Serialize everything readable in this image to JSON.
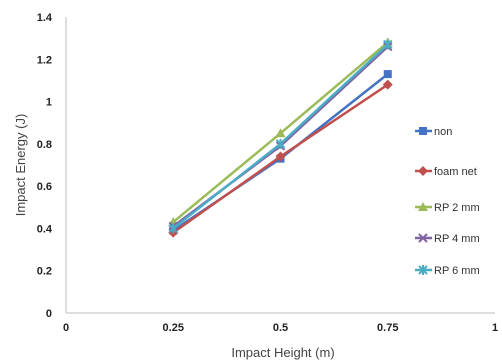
{
  "chart_data": {
    "type": "line",
    "xlabel": "Impact Height (m)",
    "ylabel": "Impact Energy  (J)",
    "xlim": [
      0,
      1
    ],
    "ylim": [
      0,
      1.4
    ],
    "x_ticks": [
      "0",
      "0.25",
      "0.5",
      "0.75",
      "1"
    ],
    "y_ticks": [
      "0",
      "0.2",
      "0.4",
      "0.6",
      "0.8",
      "1",
      "1.2",
      "1.4"
    ],
    "grid": false,
    "legend_position": "right",
    "x": [
      0.25,
      0.5,
      0.75
    ],
    "series": [
      {
        "name": "non",
        "values": [
          0.39,
          0.73,
          1.13
        ],
        "color": "#4472C4",
        "marker": "square"
      },
      {
        "name": "foam net",
        "values": [
          0.38,
          0.74,
          1.08
        ],
        "color": "#C0504D",
        "marker": "diamond"
      },
      {
        "name": "RP 2 mm",
        "values": [
          0.43,
          0.85,
          1.28
        ],
        "color": "#9BBB59",
        "marker": "triangle"
      },
      {
        "name": "RP 4 mm",
        "values": [
          0.41,
          0.79,
          1.26
        ],
        "color": "#8064A2",
        "marker": "x"
      },
      {
        "name": "RP 6 mm",
        "values": [
          0.4,
          0.8,
          1.27
        ],
        "color": "#4BACC6",
        "marker": "asterisk"
      }
    ]
  }
}
